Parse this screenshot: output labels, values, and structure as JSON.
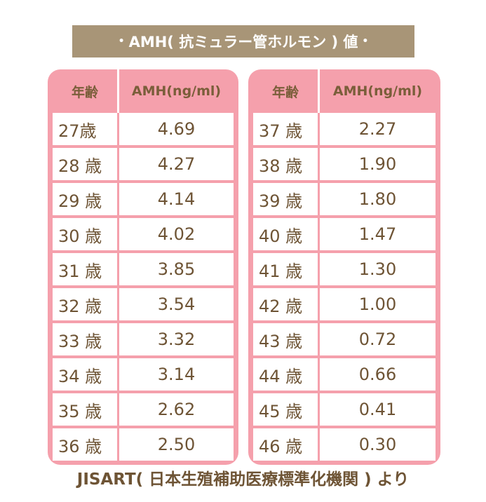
{
  "title": "AMH( 抗ミュラー管ホルモン ) 値",
  "title_bullet": "•",
  "source": "JISART( 日本生殖補助医療標準化機関 ) より",
  "chart_data": {
    "type": "table",
    "columns": [
      "年齢",
      "AMH(ng/ml)"
    ],
    "rows_left": [
      {
        "age": "27歳",
        "amh": "4.69"
      },
      {
        "age": "28 歳",
        "amh": "4.27"
      },
      {
        "age": "29 歳",
        "amh": "4.14"
      },
      {
        "age": "30 歳",
        "amh": "4.02"
      },
      {
        "age": "31 歳",
        "amh": "3.85"
      },
      {
        "age": "32 歳",
        "amh": "3.54"
      },
      {
        "age": "33 歳",
        "amh": "3.32"
      },
      {
        "age": "34 歳",
        "amh": "3.14"
      },
      {
        "age": "35 歳",
        "amh": "2.62"
      },
      {
        "age": "36 歳",
        "amh": "2.50"
      }
    ],
    "rows_right": [
      {
        "age": "37 歳",
        "amh": "2.27"
      },
      {
        "age": "38 歳",
        "amh": "1.90"
      },
      {
        "age": "39 歳",
        "amh": "1.80"
      },
      {
        "age": "40 歳",
        "amh": "1.47"
      },
      {
        "age": "41 歳",
        "amh": "1.30"
      },
      {
        "age": "42 歳",
        "amh": "1.00"
      },
      {
        "age": "43 歳",
        "amh": "0.72"
      },
      {
        "age": "44 歳",
        "amh": "0.66"
      },
      {
        "age": "45 歳",
        "amh": "0.41"
      },
      {
        "age": "46 歳",
        "amh": "0.30"
      }
    ]
  },
  "colors": {
    "title_bg": "#a89577",
    "panel_bg": "#f5a0ac",
    "text_brown": "#6e5435"
  }
}
